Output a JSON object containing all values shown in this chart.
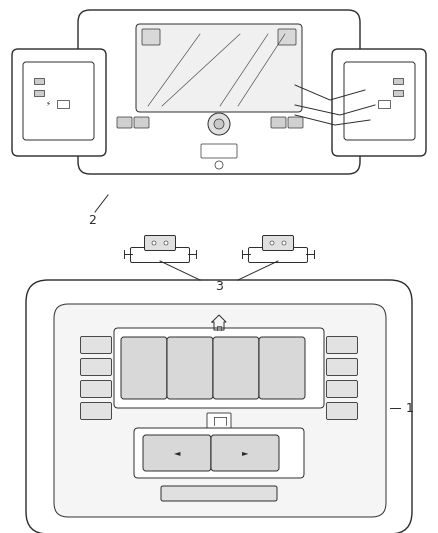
{
  "title": "",
  "background_color": "#ffffff",
  "line_color": "#2a2a2a",
  "label_1": "1",
  "label_2": "2",
  "label_3": "3",
  "figsize": [
    4.38,
    5.33
  ],
  "dpi": 100
}
